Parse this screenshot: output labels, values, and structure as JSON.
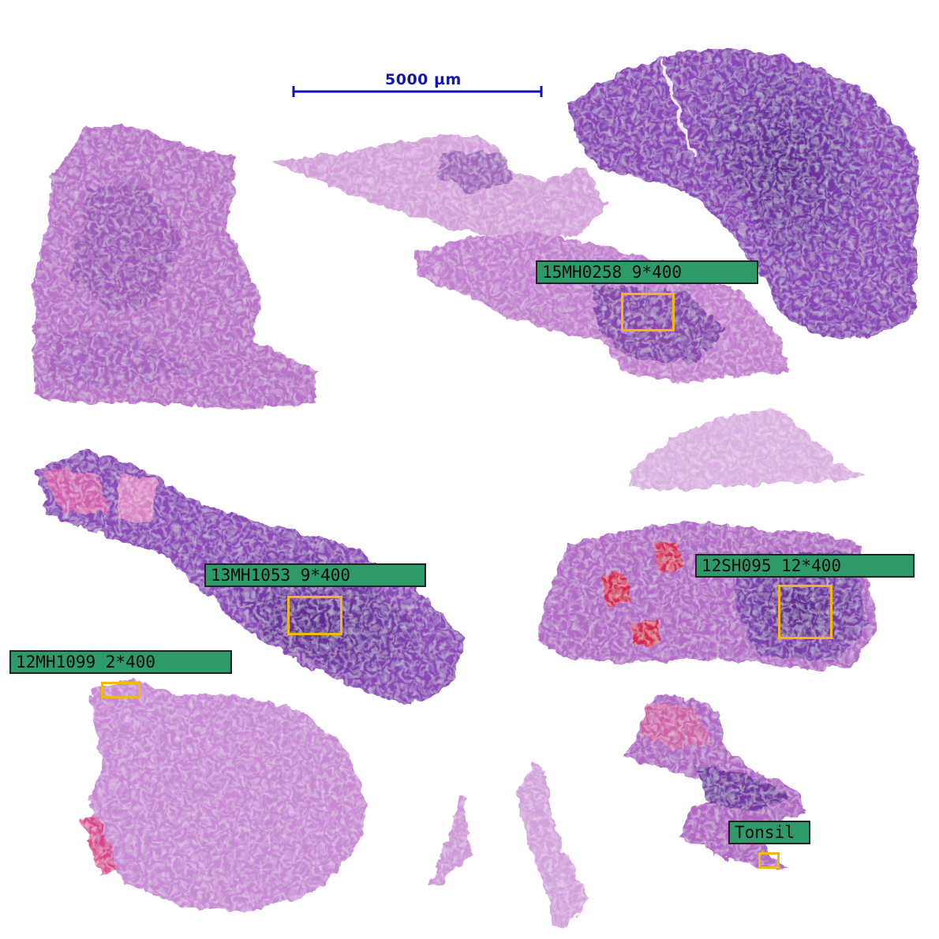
{
  "scale_bar": {
    "label": "5000 µm",
    "color": "#1414b4"
  },
  "colors": {
    "label_background": "#2e9a6a",
    "roi_border": "#f2b90c",
    "tissue_light": "#c98ad2",
    "tissue_mid": "#a45ec0",
    "tissue_dark": "#6a2e9c",
    "tissue_red": "#d81f4a"
  },
  "annotations": [
    {
      "id": "a1",
      "label": "15MH0258 9*400"
    },
    {
      "id": "a2",
      "label": "13MH1053 9*400"
    },
    {
      "id": "a3",
      "label": "12SH095 12*400"
    },
    {
      "id": "a4",
      "label": "12MH1099 2*400"
    },
    {
      "id": "a5",
      "label": "Tonsil"
    }
  ]
}
